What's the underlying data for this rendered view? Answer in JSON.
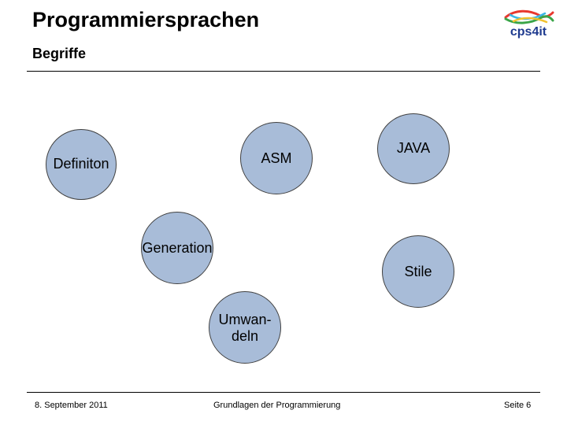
{
  "slide": {
    "title": "Programmiersprachen",
    "subtitle": "Begriffe"
  },
  "logo": {
    "text": "cps4it",
    "colors": {
      "text": "#1f3b8f",
      "swoosh_red": "#e8382e",
      "swoosh_green": "#3aa548",
      "swoosh_cyan": "#3bb7e6",
      "swoosh_yellow": "#f2c230"
    }
  },
  "nodes": [
    {
      "id": "definiton",
      "label": "Definiton"
    },
    {
      "id": "asm",
      "label": "ASM"
    },
    {
      "id": "java",
      "label": "JAVA"
    },
    {
      "id": "generation",
      "label": "Generation"
    },
    {
      "id": "stile",
      "label": "Stile"
    },
    {
      "id": "umwandeln",
      "label": "Umwan-\ndeln"
    }
  ],
  "colors": {
    "node_fill": "#a8bcd8",
    "node_border": "#404040"
  },
  "footer": {
    "date": "8. September 2011",
    "course": "Grundlagen der Programmierung",
    "page": "Seite 6"
  }
}
